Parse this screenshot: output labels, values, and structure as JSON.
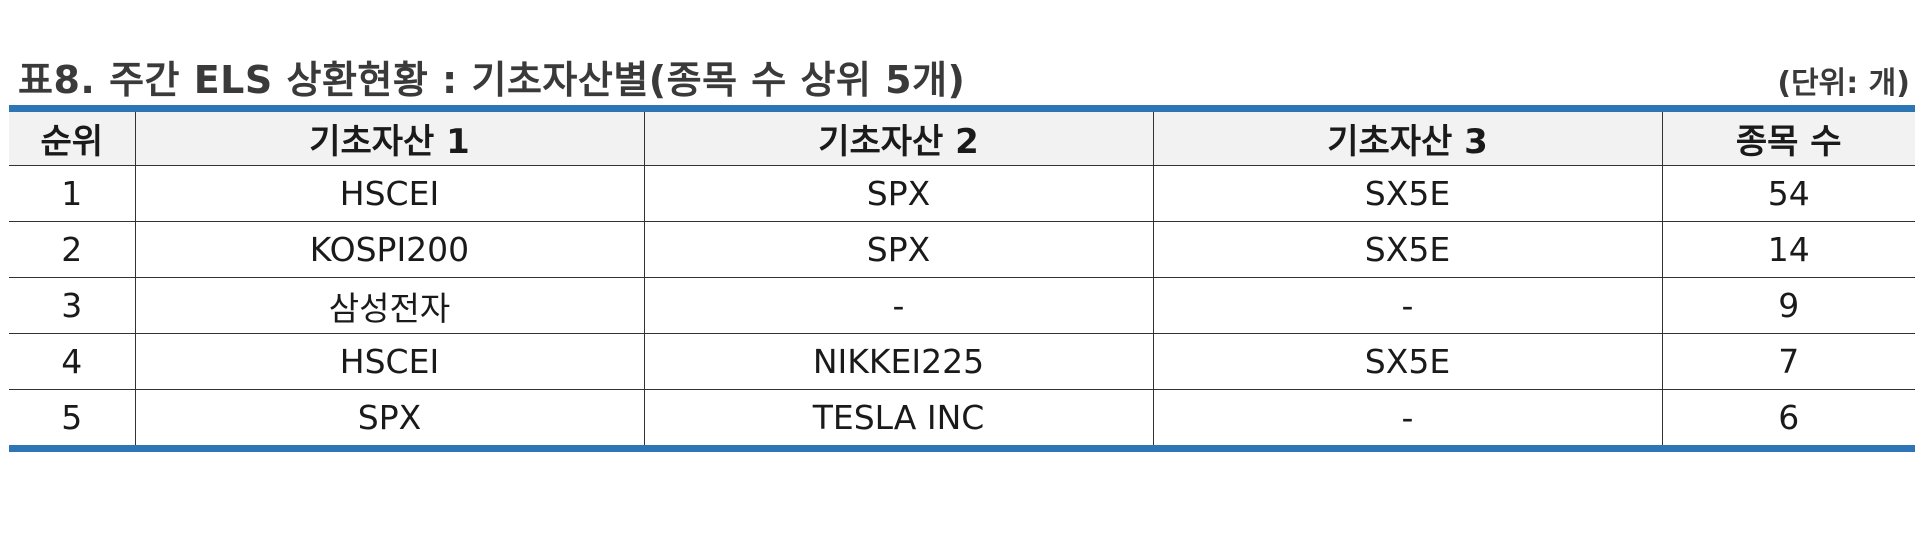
{
  "title": "표8. 주간 ELS 상환현황 : 기초자산별(종목 수 상위 5개)",
  "unit": "(단위: 개)",
  "table": {
    "headers": [
      "순위",
      "기초자산 1",
      "기초자산 2",
      "기초자산 3",
      "종목 수"
    ],
    "rows": [
      [
        "1",
        "HSCEI",
        "SPX",
        "SX5E",
        "54"
      ],
      [
        "2",
        "KOSPI200",
        "SPX",
        "SX5E",
        "14"
      ],
      [
        "3",
        "삼성전자",
        "-",
        "-",
        "9"
      ],
      [
        "4",
        "HSCEI",
        "NIKKEI225",
        "SX5E",
        "7"
      ],
      [
        "5",
        "SPX",
        "TESLA INC",
        "-",
        "6"
      ]
    ]
  },
  "colors": {
    "rule": "#2e75b6",
    "header_bg": "#f2f2f2",
    "title_text": "#3a3a3a"
  }
}
